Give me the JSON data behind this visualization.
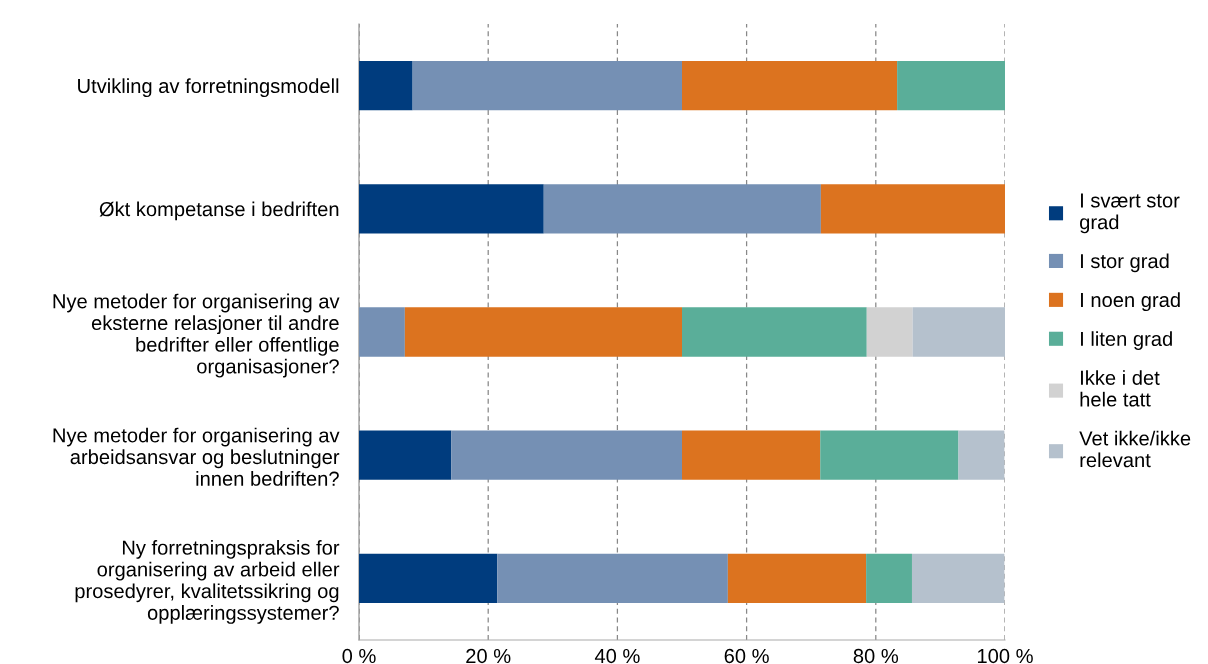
{
  "chart_data": {
    "type": "bar",
    "orientation": "horizontal",
    "stacked": true,
    "categories": [
      "Utvikling av forretningsmodell",
      "Økt kompetanse i bedriften",
      "Nye metoder for organisering av\neksterne relasjoner til andre\nbedrifter eller offentlige\norganisasjoner?",
      "Nye metoder for organisering av\narbeidsansvar og beslutninger\ninnen bedriften?",
      "Ny forretningspraksis for\norganisering av arbeid eller\nprosedyrer, kvalitetssikring og\nopplæringssystemer?"
    ],
    "series": [
      {
        "name": "I svært stor\ngrad",
        "color": "#003c7e",
        "values": [
          8.3,
          28.6,
          0,
          14.3,
          21.4
        ]
      },
      {
        "name": "I stor grad",
        "color": "#7590b4",
        "values": [
          41.7,
          42.9,
          7.1,
          35.7,
          35.7
        ]
      },
      {
        "name": "I noen grad",
        "color": "#dc731f",
        "values": [
          33.3,
          28.6,
          42.9,
          21.4,
          21.4
        ]
      },
      {
        "name": "I liten grad",
        "color": "#5aae99",
        "values": [
          16.7,
          0,
          28.6,
          21.4,
          7.1
        ]
      },
      {
        "name": "Ikke i det\nhele tatt",
        "color": "#d2d2d2",
        "values": [
          0,
          0,
          7.1,
          0,
          0
        ]
      },
      {
        "name": "Vet ikke/ikke\nrelevant",
        "color": "#b5c1cd",
        "values": [
          0,
          0,
          14.3,
          7.1,
          14.3
        ]
      }
    ],
    "xlim": [
      0,
      100
    ],
    "xticks": [
      {
        "value": 0,
        "label": "0 %"
      },
      {
        "value": 20,
        "label": "20 %"
      },
      {
        "value": 40,
        "label": "40 %"
      },
      {
        "value": 60,
        "label": "60 %"
      },
      {
        "value": 80,
        "label": "80 %"
      },
      {
        "value": 100,
        "label": "100 %"
      }
    ],
    "grid": "x",
    "legend": "right"
  }
}
